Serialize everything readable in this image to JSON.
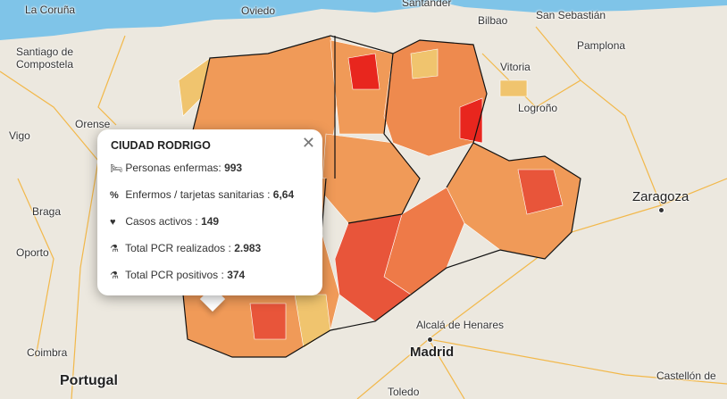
{
  "colors": {
    "sea": "#7fc4e8",
    "land": "#ece8df",
    "low": "#f0c46e",
    "mid": "#f09a58",
    "high": "#e8553a",
    "max": "#e8261e",
    "border": "#111111"
  },
  "cities": [
    "La Coruña",
    "Oviedo",
    "Santander",
    "Bilbao",
    "San Sebastián",
    "Santiago de Compostela",
    "Vitoria",
    "Pamplona",
    "Orense",
    "Logroño",
    "Vigo",
    "Zaragoza",
    "Braga",
    "Oporto",
    "Alcalá de Henares",
    "Madrid",
    "Coimbra",
    "Portugal",
    "Castellón de",
    "Toledo"
  ],
  "popup": {
    "title": "CIUDAD RODRIGO",
    "close_icon": "close-icon",
    "rows": [
      {
        "icon": "bed-icon",
        "label": "Personas enfermas:",
        "value": "993"
      },
      {
        "icon": "percent-icon",
        "label": "Enfermos / tarjetas sanitarias :",
        "value": "6,64"
      },
      {
        "icon": "heartbeat-icon",
        "label": "Casos activos :",
        "value": "149"
      },
      {
        "icon": "flask-icon",
        "label": "Total PCR realizados :",
        "value": "2.983"
      },
      {
        "icon": "flask-icon",
        "label": "Total PCR positivos :",
        "value": "374"
      }
    ]
  }
}
